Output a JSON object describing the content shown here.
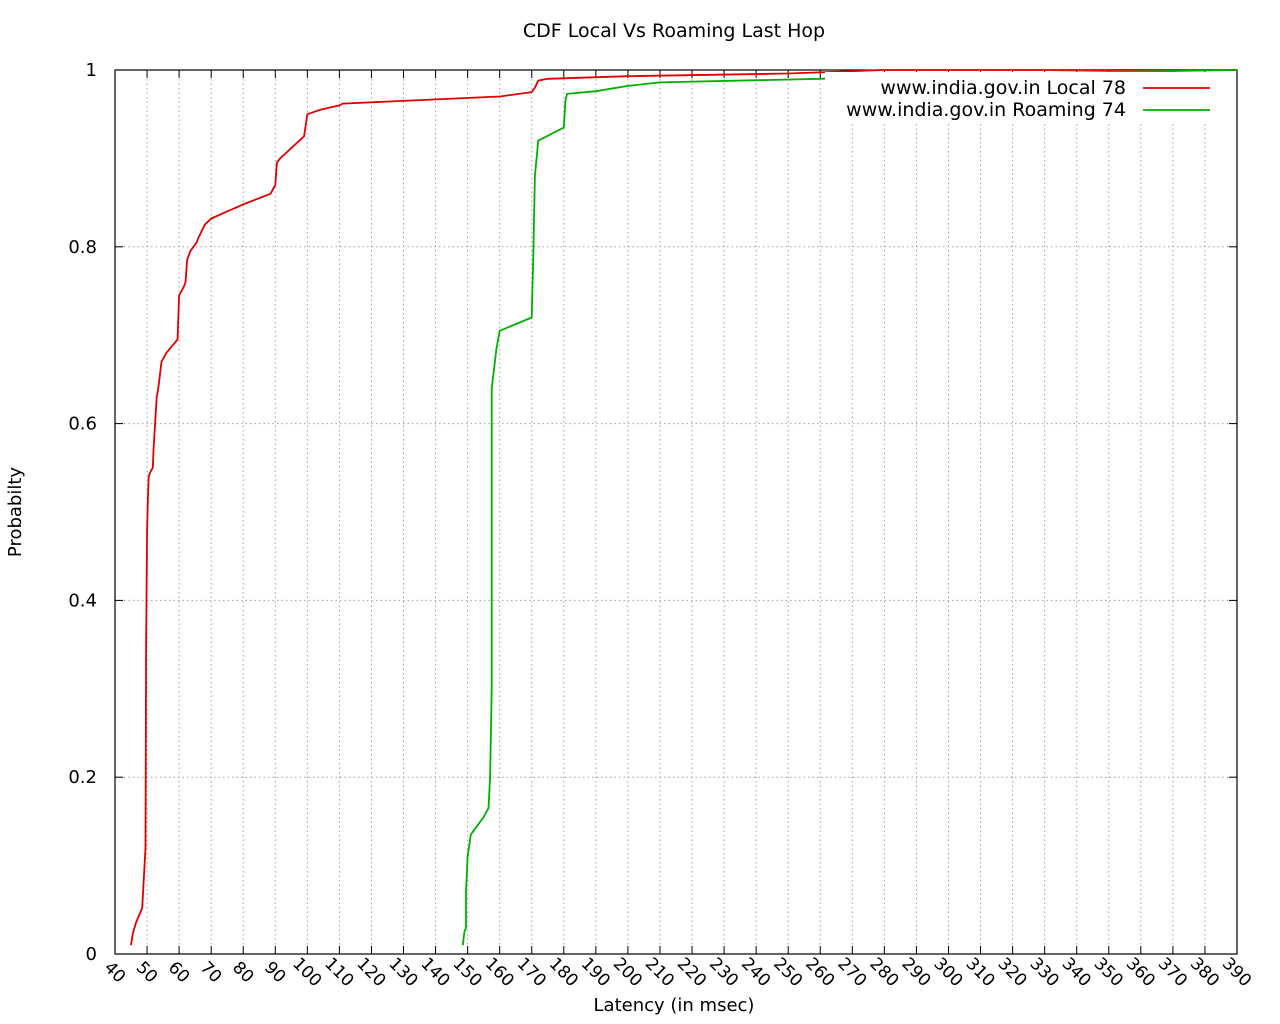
{
  "chart_data": {
    "type": "line",
    "title": "CDF Local Vs Roaming Last Hop",
    "xlabel": "Latency (in msec)",
    "ylabel": "Probabilty",
    "xlim": [
      40,
      390
    ],
    "ylim": [
      0,
      1
    ],
    "xticks": [
      "40",
      "50",
      "60",
      "70",
      "80",
      "90",
      "100",
      "110",
      "120",
      "130",
      "140",
      "150",
      "160",
      "170",
      "180",
      "190",
      "200",
      "210",
      "220",
      "230",
      "240",
      "250",
      "260",
      "270",
      "280",
      "290",
      "300",
      "310",
      "320",
      "330",
      "340",
      "350",
      "360",
      "370",
      "380",
      "390"
    ],
    "yticks": [
      "0",
      "0.2",
      "0.4",
      "0.6",
      "0.8",
      "1"
    ],
    "grid": true,
    "legend_position": "top-right",
    "series": [
      {
        "name": "www.india.gov.in Local 78",
        "color": "#e00000",
        "x": [
          45,
          45.5,
          46.5,
          48.5,
          49.5,
          49.7,
          50,
          50.3,
          50.5,
          51,
          51.8,
          52,
          52.5,
          53,
          53.5,
          54.5,
          56,
          59.5,
          59.8,
          60,
          61.5,
          62,
          62.5,
          63.5,
          65.5,
          66,
          68,
          70,
          75,
          80,
          88.5,
          90,
          90.5,
          91.5,
          99,
          100,
          104,
          110,
          111,
          160,
          170,
          171,
          172,
          175,
          200,
          250,
          280,
          390
        ],
        "y": [
          0.01,
          0.022,
          0.035,
          0.052,
          0.12,
          0.35,
          0.48,
          0.52,
          0.54,
          0.545,
          0.55,
          0.57,
          0.6,
          0.63,
          0.64,
          0.67,
          0.68,
          0.695,
          0.725,
          0.745,
          0.755,
          0.76,
          0.785,
          0.795,
          0.805,
          0.81,
          0.825,
          0.832,
          0.84,
          0.848,
          0.86,
          0.87,
          0.895,
          0.9,
          0.925,
          0.95,
          0.955,
          0.96,
          0.962,
          0.97,
          0.975,
          0.98,
          0.988,
          0.99,
          0.993,
          0.996,
          1.0,
          1.0
        ]
      },
      {
        "name": "www.india.gov.in Roaming 74",
        "color": "#00b000",
        "x": [
          148.5,
          149,
          149.5,
          149.5,
          150,
          151,
          152,
          155,
          156.5,
          157,
          157.5,
          157.5,
          159,
          160,
          170,
          170.5,
          171,
          171.5,
          172,
          180,
          180.5,
          181,
          190,
          200,
          210,
          260,
          300,
          390
        ],
        "y": [
          0.01,
          0.025,
          0.03,
          0.07,
          0.11,
          0.135,
          0.14,
          0.155,
          0.165,
          0.2,
          0.3,
          0.64,
          0.685,
          0.705,
          0.72,
          0.79,
          0.88,
          0.9,
          0.92,
          0.935,
          0.965,
          0.973,
          0.976,
          0.982,
          0.986,
          0.99,
          0.995,
          1.0
        ]
      }
    ]
  }
}
